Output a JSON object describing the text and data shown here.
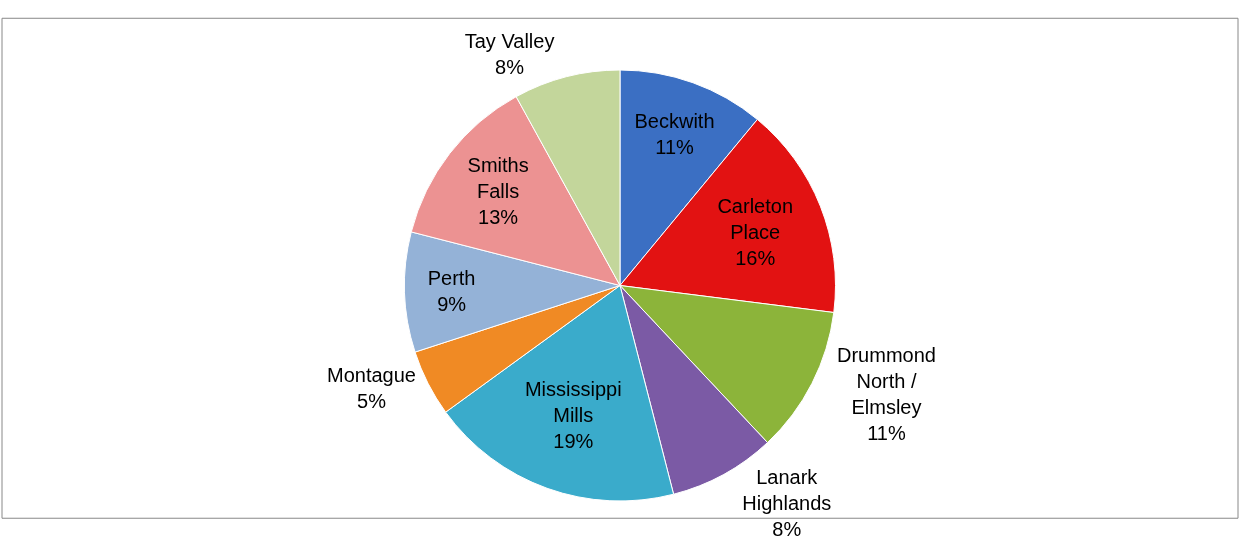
{
  "chart_data": {
    "type": "pie",
    "categories": [
      "Beckwith",
      "Carleton Place",
      "Drummond North / Elmsley",
      "Lanark Highlands",
      "Mississippi Mills",
      "Montague",
      "Perth",
      "Smiths Falls",
      "Tay Valley"
    ],
    "values": [
      11,
      16,
      11,
      8,
      19,
      5,
      9,
      13,
      8
    ],
    "value_labels": [
      "11%",
      "16%",
      "11%",
      "8%",
      "19%",
      "5%",
      "9%",
      "13%",
      "8%"
    ],
    "colors": [
      "#3b6fc3",
      "#e21212",
      "#8cb43a",
      "#7b5aa5",
      "#3aabcb",
      "#f08a24",
      "#94b2d7",
      "#ec9292",
      "#c3d69b"
    ],
    "legend": false
  }
}
